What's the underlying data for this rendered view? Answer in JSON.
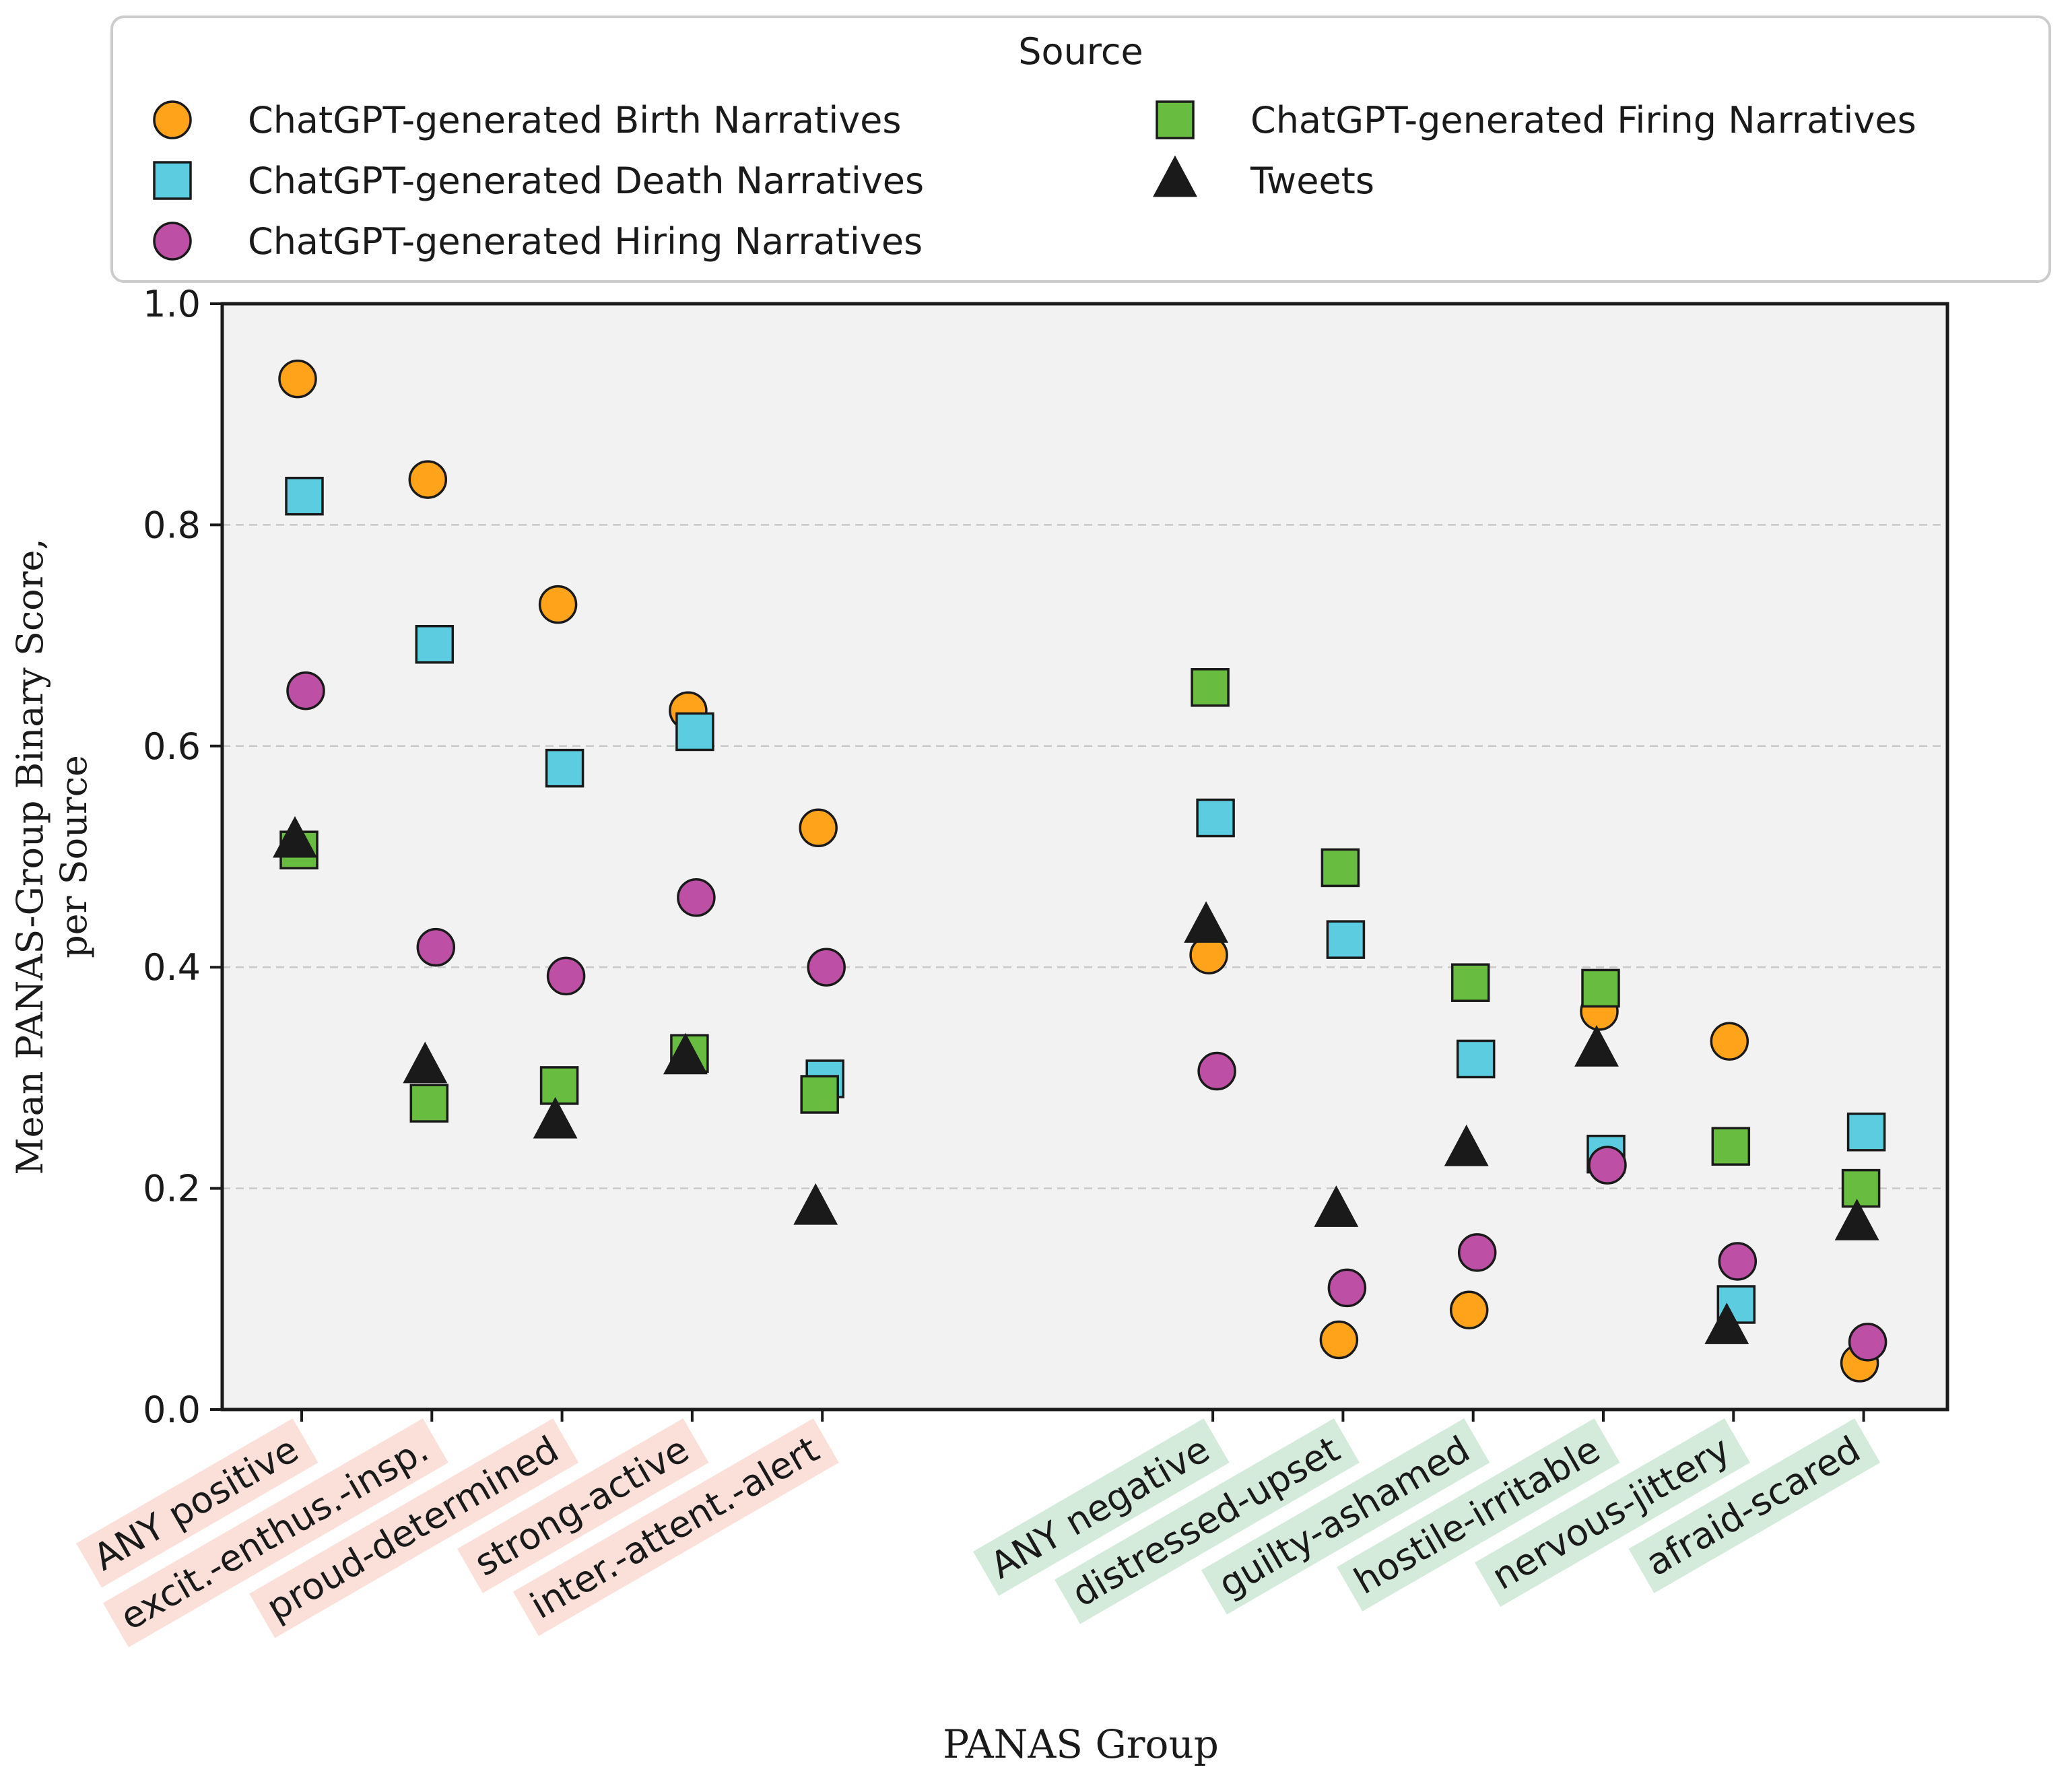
{
  "chart_data": {
    "type": "scatter",
    "xlabel": "PANAS Group",
    "ylabel_lines": [
      "Mean PANAS-Group Binary Score,",
      "per Source"
    ],
    "ylim": [
      0,
      1
    ],
    "yticks": [
      0.0,
      0.2,
      0.4,
      0.6,
      0.8,
      1.0
    ],
    "ytick_labels": [
      "0.0",
      "0.2",
      "0.4",
      "0.6",
      "0.8",
      "1.0"
    ],
    "grid": "y-dashed",
    "categories": [
      {
        "label": "ANY positive",
        "x": 0,
        "group": "positive"
      },
      {
        "label": "excit.-enthus.-insp.",
        "x": 1,
        "group": "positive"
      },
      {
        "label": "proud-determined",
        "x": 2,
        "group": "positive"
      },
      {
        "label": "strong-active",
        "x": 3,
        "group": "positive"
      },
      {
        "label": "inter.-attent.-alert",
        "x": 4,
        "group": "positive"
      },
      {
        "label": "ANY negative",
        "x": 7,
        "group": "negative"
      },
      {
        "label": "distressed-upset",
        "x": 8,
        "group": "negative"
      },
      {
        "label": "guilty-ashamed",
        "x": 9,
        "group": "negative"
      },
      {
        "label": "hostile-irritable",
        "x": 10,
        "group": "negative"
      },
      {
        "label": "nervous-jittery",
        "x": 11,
        "group": "negative"
      },
      {
        "label": "afraid-scared",
        "x": 12,
        "group": "negative"
      }
    ],
    "group_colors": {
      "positive": "#fbe0da",
      "negative": "#d4ebdc"
    },
    "series": [
      {
        "name": "ChatGPT-generated Birth Narratives",
        "marker": "circle",
        "color": "#ffa31a",
        "values": [
          0.932,
          0.841,
          0.728,
          0.632,
          0.526,
          0.411,
          0.063,
          0.09,
          0.36,
          0.333,
          0.042
        ]
      },
      {
        "name": "ChatGPT-generated Death Narratives",
        "marker": "square",
        "color": "#5ccde0",
        "values": [
          0.826,
          0.692,
          0.58,
          0.613,
          0.299,
          0.535,
          0.425,
          0.317,
          0.231,
          0.095,
          0.251
        ]
      },
      {
        "name": "ChatGPT-generated Hiring Narratives",
        "marker": "circle",
        "color": "#bd4fa5",
        "values": [
          0.65,
          0.418,
          0.392,
          0.463,
          0.4,
          0.306,
          0.11,
          0.142,
          0.221,
          0.134,
          0.061
        ]
      },
      {
        "name": "ChatGPT-generated Firing Narratives",
        "marker": "square",
        "color": "#68bd40",
        "values": [
          0.506,
          0.277,
          0.293,
          0.322,
          0.285,
          0.653,
          0.49,
          0.386,
          0.381,
          0.238,
          0.2
        ]
      },
      {
        "name": "Tweets",
        "marker": "triangle",
        "color": "#1a1a1a",
        "values": [
          0.514,
          0.31,
          0.26,
          0.318,
          0.182,
          0.437,
          0.18,
          0.235,
          0.325,
          0.074,
          0.168
        ]
      }
    ],
    "legend": {
      "title": "Source",
      "placement": "top",
      "columns": [
        [
          "ChatGPT-generated Birth Narratives",
          "ChatGPT-generated Death Narratives",
          "ChatGPT-generated Hiring Narratives"
        ],
        [
          "ChatGPT-generated Firing Narratives",
          "Tweets"
        ]
      ]
    }
  }
}
